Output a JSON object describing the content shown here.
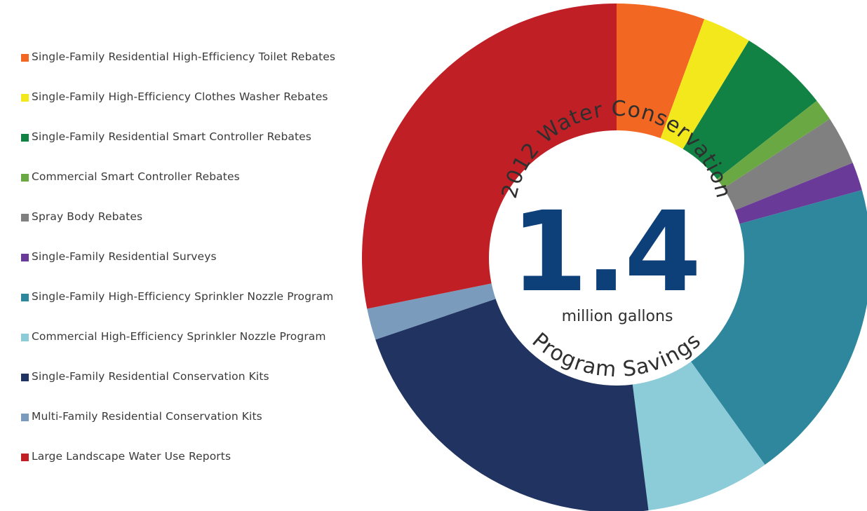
{
  "chart_data": {
    "type": "pie",
    "title": "2012 Water Conservation Program Savings",
    "title_top": "2012 Water Conservation",
    "title_bottom": "Program Savings",
    "center_value": "1.4",
    "center_unit": "million gallons",
    "legend_position": "left",
    "series": [
      {
        "name": "Single-Family Residential High-Efficiency Toilet Rebates",
        "value": 5.6,
        "color": "#f26722"
      },
      {
        "name": "Single-Family High-Efficiency Clothes Washer Rebates",
        "value": 3.1,
        "color": "#f2e81c"
      },
      {
        "name": "Single-Family Residential Smart Controller Rebates",
        "value": 5.7,
        "color": "#128244"
      },
      {
        "name": "Commercial Smart Controller Rebates",
        "value": 1.4,
        "color": "#6aa843"
      },
      {
        "name": "Spray Body Rebates",
        "value": 3.1,
        "color": "#808080"
      },
      {
        "name": "Single-Family Residential Surveys",
        "value": 1.8,
        "color": "#6a3a98"
      },
      {
        "name": "Single-Family High-Efficiency Sprinkler Nozzle Program",
        "value": 19.4,
        "color": "#2e879c"
      },
      {
        "name": "Commercial High-Efficiency Sprinkler Nozzle Program",
        "value": 7.9,
        "color": "#8ccbd8"
      },
      {
        "name": "Single-Family Residential Conservation Kits",
        "value": 21.8,
        "color": "#213361"
      },
      {
        "name": "Multi-Family Residential Conservation Kits",
        "value": 2.0,
        "color": "#7b9bbd"
      },
      {
        "name": "Large Landscape Water Use Reports",
        "value": 28.2,
        "color": "#c01f26"
      }
    ]
  }
}
